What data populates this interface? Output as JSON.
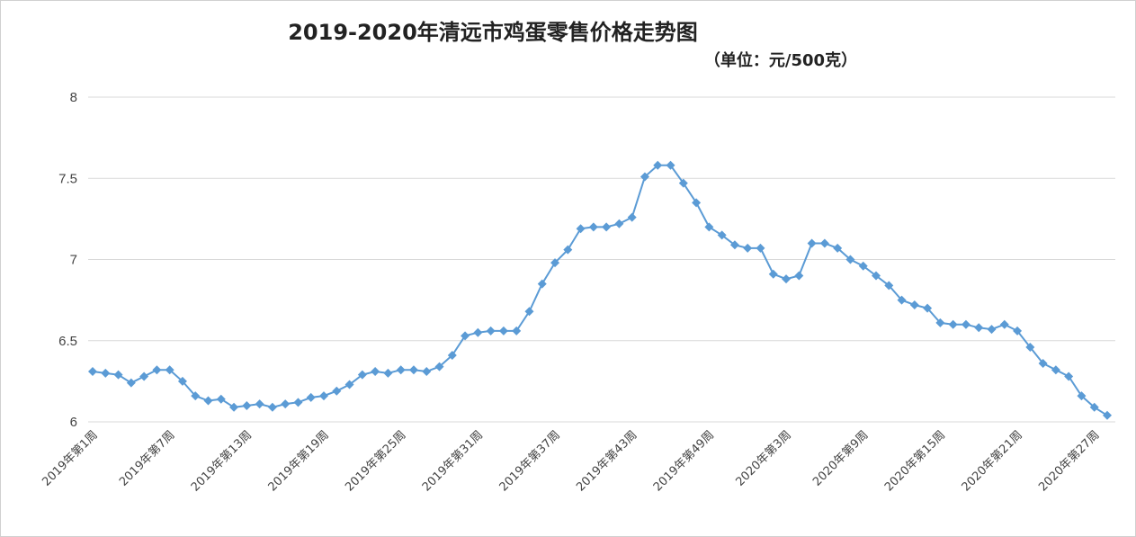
{
  "chart_data": {
    "type": "line",
    "title": "2019-2020年清远市鸡蛋零售价格走势图",
    "subtitle": "（单位：元/500克）",
    "ylim": [
      6,
      8
    ],
    "yticks": [
      "6",
      "6.5",
      "7",
      "7.5",
      "8"
    ],
    "grid": true,
    "legend": "none",
    "color": "#5b9bd5",
    "xtick_labels": [
      "2019年第1周",
      "2019年第7周",
      "2019年第13周",
      "2019年第19周",
      "2019年第25周",
      "2019年第31周",
      "2019年第37周",
      "2019年第43周",
      "2019年第49周",
      "2020年第3周",
      "2020年第9周",
      "2020年第15周",
      "2020年第21周",
      "2020年第27周"
    ],
    "series": [
      {
        "values": [
          6.31,
          6.3,
          6.29,
          6.24,
          6.28,
          6.32,
          6.32,
          6.25,
          6.16,
          6.13,
          6.14,
          6.09,
          6.1,
          6.11,
          6.09,
          6.11,
          6.12,
          6.15,
          6.16,
          6.19,
          6.23,
          6.29,
          6.31,
          6.3,
          6.32,
          6.32,
          6.31,
          6.34,
          6.41,
          6.53,
          6.55,
          6.56,
          6.56,
          6.56,
          6.68,
          6.85,
          6.98,
          7.06,
          7.19,
          7.2,
          7.2,
          7.22,
          7.26,
          7.51,
          7.58,
          7.58,
          7.47,
          7.35,
          7.2,
          7.15,
          7.09,
          7.07,
          7.07,
          6.91,
          6.88,
          6.9,
          7.1,
          7.1,
          7.07,
          7.0,
          6.96,
          6.9,
          6.84,
          6.75,
          6.72,
          6.7,
          6.61,
          6.6,
          6.6,
          6.58,
          6.57,
          6.6,
          6.56,
          6.46,
          6.36,
          6.32,
          6.28,
          6.16,
          6.09,
          6.04
        ]
      }
    ]
  }
}
